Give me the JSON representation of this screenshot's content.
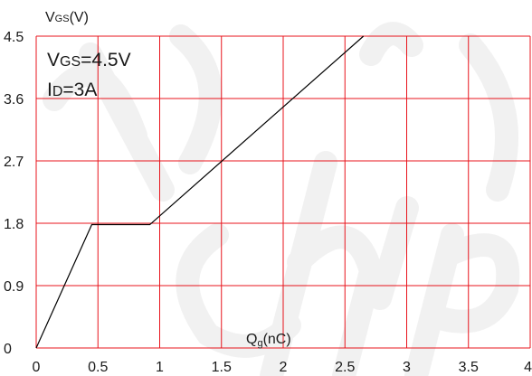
{
  "chart_data": {
    "type": "line",
    "x_ticks": [
      "0",
      "0.5",
      "1",
      "1.5",
      "2",
      "2.5",
      "3",
      "3.5",
      "4"
    ],
    "y_ticks": [
      "0",
      "0.9",
      "1.8",
      "2.7",
      "3.6",
      "4.5"
    ],
    "xlim": [
      0,
      4
    ],
    "ylim": [
      0,
      4.5
    ],
    "grid": true,
    "ylabel": {
      "main": "V",
      "sub": "GS",
      "tail": "(V)"
    },
    "xlabel": {
      "main": "Q",
      "sub": "g",
      "tail": "(nC)"
    },
    "annotations": [
      {
        "main": "V",
        "sub": "GS",
        "tail": "=4.5V"
      },
      {
        "main": "I",
        "sub": "D",
        "tail": "=3A"
      }
    ],
    "series": [
      {
        "color": "#000000",
        "x": [
          0,
          0.45,
          0.92,
          2.65
        ],
        "y": [
          0,
          1.78,
          1.78,
          4.5
        ]
      }
    ],
    "grid_color": "#e8141c",
    "watermark": "chip"
  }
}
